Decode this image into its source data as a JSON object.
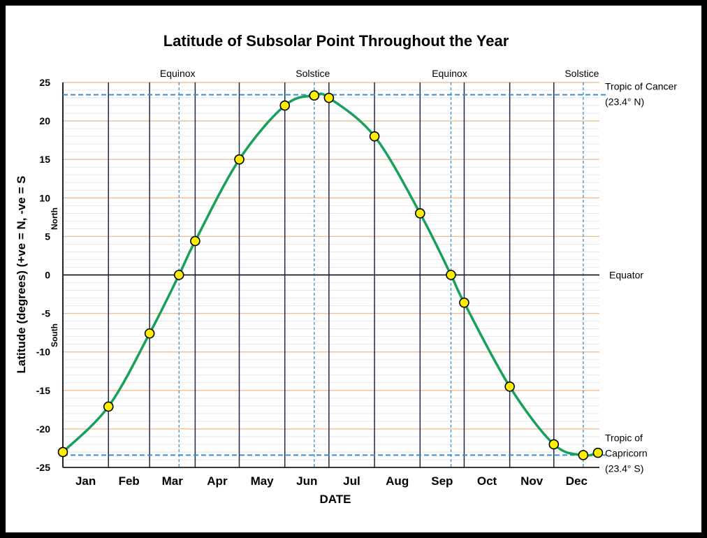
{
  "colors": {
    "curve": "#16a05a",
    "marker_fill": "#ffee00",
    "marker_stroke": "#000000",
    "major_grid": "#f2c29a",
    "minor_grid": "#e6e6e6",
    "month_lines": "#1e2a44",
    "reference_lines": "#3a8fd0",
    "equator": "#000000"
  },
  "chart_data": {
    "type": "line",
    "title": "Latitude of Subsolar Point Throughout the Year",
    "xlabel": "DATE",
    "ylabel": "Latitude (degrees) (+ve = N, -ve = S",
    "ylim": [
      -25,
      25
    ],
    "yticks": [
      25,
      20,
      15,
      10,
      5,
      0,
      -5,
      -10,
      -15,
      -20,
      -25
    ],
    "month_labels": [
      "Jan",
      "Feb",
      "Mar",
      "Apr",
      "May",
      "Jun",
      "Jul",
      "Aug",
      "Sep",
      "Oct",
      "Nov",
      "Dec"
    ],
    "month_starts": [
      "2021-01-01",
      "2021-02-01",
      "2021-03-01",
      "2021-04-01",
      "2021-05-01",
      "2021-06-01",
      "2021-07-01",
      "2021-08-01",
      "2021-09-01",
      "2021-10-01",
      "2021-11-01",
      "2021-12-01"
    ],
    "xlim": [
      "2021-01-01",
      "2022-01-01"
    ],
    "grid": true,
    "series": [
      {
        "points": [
          {
            "date": "2021-01-01",
            "lat": -23.0
          },
          {
            "date": "2021-02-01",
            "lat": -17.1
          },
          {
            "date": "2021-03-01",
            "lat": -7.6
          },
          {
            "date": "2021-03-21",
            "lat": 0.0
          },
          {
            "date": "2021-04-01",
            "lat": 4.4
          },
          {
            "date": "2021-05-01",
            "lat": 15.0
          },
          {
            "date": "2021-06-01",
            "lat": 22.0
          },
          {
            "date": "2021-06-21",
            "lat": 23.3
          },
          {
            "date": "2021-07-01",
            "lat": 23.0
          },
          {
            "date": "2021-08-01",
            "lat": 18.0
          },
          {
            "date": "2021-09-01",
            "lat": 8.0
          },
          {
            "date": "2021-09-22",
            "lat": 0.0
          },
          {
            "date": "2021-10-01",
            "lat": -3.6
          },
          {
            "date": "2021-11-01",
            "lat": -14.5
          },
          {
            "date": "2021-12-01",
            "lat": -22.0
          },
          {
            "date": "2021-12-21",
            "lat": -23.4
          },
          {
            "date": "2021-12-31",
            "lat": -23.1
          }
        ]
      }
    ],
    "reference_dates": [
      {
        "date": "2021-03-21",
        "label": "Equinox"
      },
      {
        "date": "2021-06-21",
        "label": "Solstice"
      },
      {
        "date": "2021-09-22",
        "label": "Equinox"
      },
      {
        "date": "2021-12-21",
        "label": "Solstice"
      }
    ],
    "reference_lats": [
      {
        "lat": 23.4,
        "label_lines": [
          "Tropic of Cancer",
          "(23.4° N)"
        ]
      },
      {
        "lat": 0,
        "label_lines": [
          "Equator"
        ]
      },
      {
        "lat": -23.4,
        "label_lines": [
          "Tropic of",
          "Capricorn",
          "(23.4° S)"
        ]
      }
    ],
    "hemisphere_labels": {
      "north": "North",
      "south": "South"
    }
  }
}
